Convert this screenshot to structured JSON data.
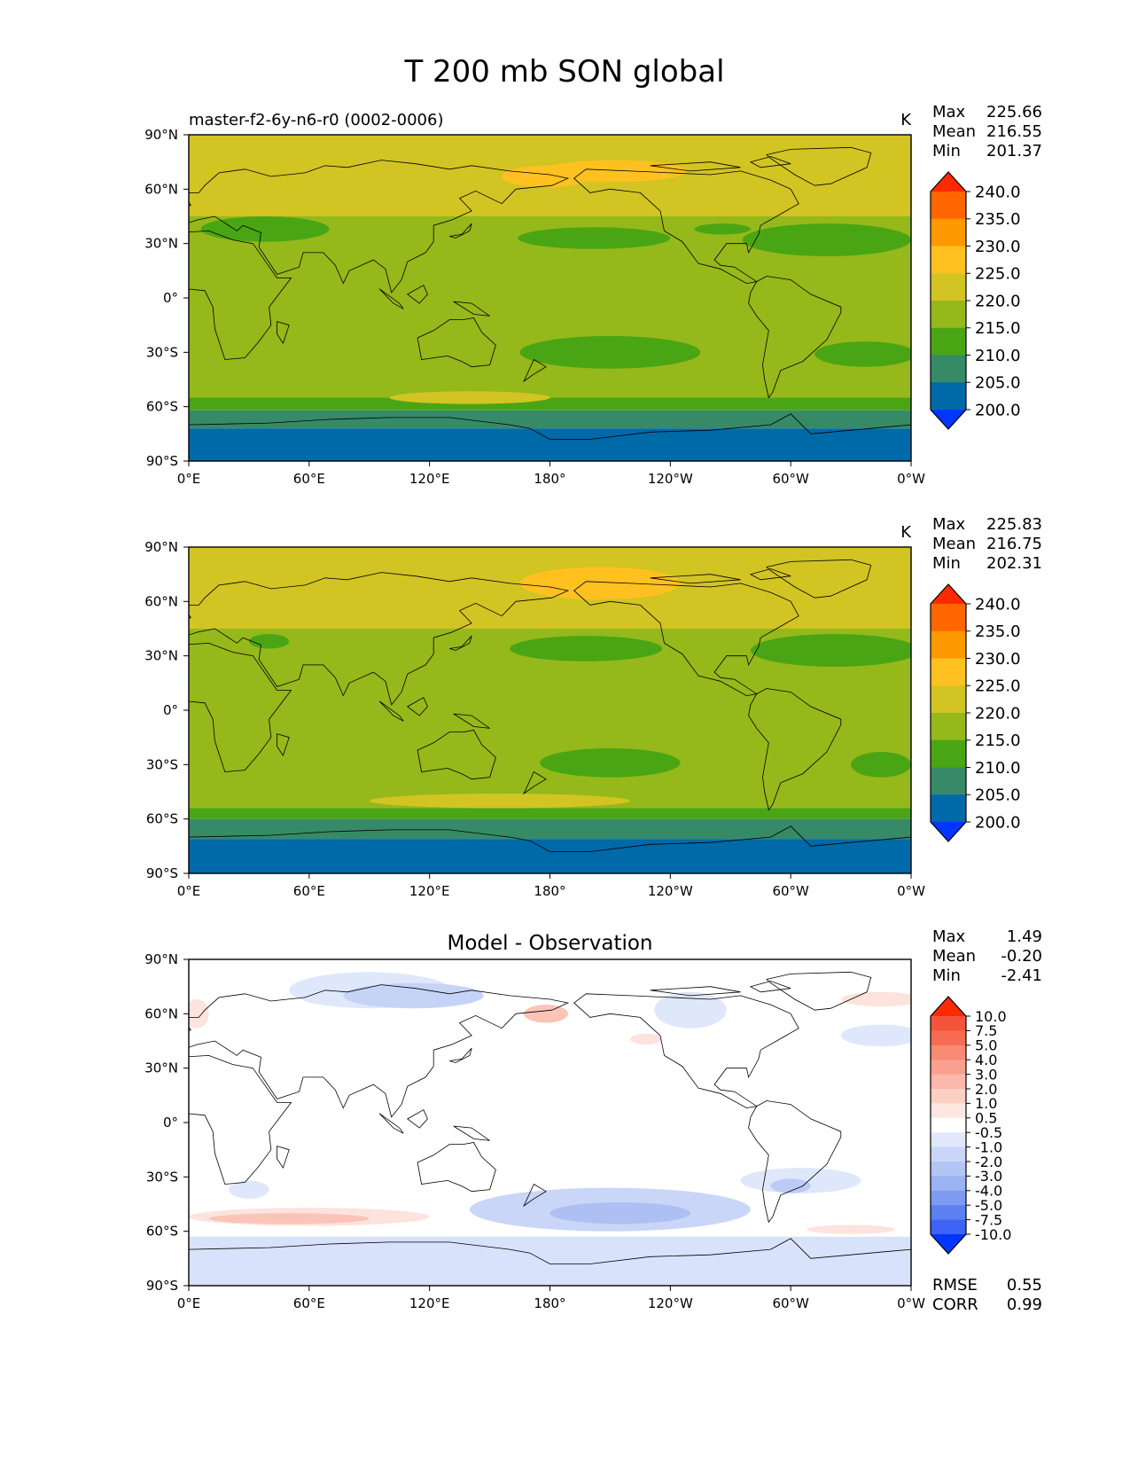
{
  "figure": {
    "title": "T 200 mb SON global",
    "colors": {
      "ocean_outline": "#000000",
      "land_line": "#000000"
    }
  },
  "panels": [
    {
      "id": "model",
      "subtitle_left": "master-f2-6y-n6-r0 (0002-0006)",
      "center_title": "",
      "units": "K",
      "stats": [
        {
          "label": "Max",
          "value": "225.66"
        },
        {
          "label": "Mean",
          "value": "216.55"
        },
        {
          "label": "Min",
          "value": "201.37"
        }
      ],
      "colorbar": {
        "levels": [
          "240.0",
          "235.0",
          "230.0",
          "225.0",
          "220.0",
          "215.0",
          "210.0",
          "205.0",
          "200.0"
        ],
        "colors": [
          "#ff2a00",
          "#ff6600",
          "#ff9900",
          "#ffc11f",
          "#d2c423",
          "#95b81a",
          "#4aa514",
          "#368a68",
          "#0069a8",
          "#0036ff"
        ]
      },
      "bands": [
        {
          "lat_top": 90,
          "lat_bottom": 45,
          "color": "#d2c423"
        },
        {
          "lat_top": 45,
          "lat_bottom": -55,
          "color": "#95b81a"
        },
        {
          "lat_top": -55,
          "lat_bottom": -62,
          "color": "#4aa514"
        },
        {
          "lat_top": -62,
          "lat_bottom": -72,
          "color": "#368a68"
        },
        {
          "lat_top": -72,
          "lat_bottom": -90,
          "color": "#0069a8"
        }
      ],
      "blobs": [
        {
          "lon": 178,
          "lat": 67,
          "dlon": 22,
          "dlat": 6,
          "color": "#ffc11f"
        },
        {
          "lon": 212,
          "lat": 70,
          "dlon": 36,
          "dlat": 6,
          "color": "#ffc11f"
        },
        {
          "lon": 38,
          "lat": 38,
          "dlon": 32,
          "dlat": 7,
          "color": "#4aa514"
        },
        {
          "lon": 202,
          "lat": 33,
          "dlon": 38,
          "dlat": 6,
          "color": "#4aa514"
        },
        {
          "lon": 318,
          "lat": 32,
          "dlon": 42,
          "dlat": 9,
          "color": "#4aa514"
        },
        {
          "lon": 266,
          "lat": 38,
          "dlon": 14,
          "dlat": 3,
          "color": "#4aa514"
        },
        {
          "lon": 210,
          "lat": -30,
          "dlon": 45,
          "dlat": 9,
          "color": "#4aa514"
        },
        {
          "lon": 337,
          "lat": -31,
          "dlon": 25,
          "dlat": 7,
          "color": "#4aa514"
        },
        {
          "lon": 140,
          "lat": -55,
          "dlon": 40,
          "dlat": 3.5,
          "color": "#d2c423"
        }
      ]
    },
    {
      "id": "obs",
      "subtitle_left": "",
      "center_title": "",
      "units": "K",
      "stats": [
        {
          "label": "Max",
          "value": "225.83"
        },
        {
          "label": "Mean",
          "value": "216.75"
        },
        {
          "label": "Min",
          "value": "202.31"
        }
      ],
      "colorbar": {
        "levels": [
          "240.0",
          "235.0",
          "230.0",
          "225.0",
          "220.0",
          "215.0",
          "210.0",
          "205.0",
          "200.0"
        ],
        "colors": [
          "#ff2a00",
          "#ff6600",
          "#ff9900",
          "#ffc11f",
          "#d2c423",
          "#95b81a",
          "#4aa514",
          "#368a68",
          "#0069a8",
          "#0036ff"
        ]
      },
      "bands": [
        {
          "lat_top": 90,
          "lat_bottom": 45,
          "color": "#d2c423"
        },
        {
          "lat_top": 45,
          "lat_bottom": -54,
          "color": "#95b81a"
        },
        {
          "lat_top": -54,
          "lat_bottom": -60,
          "color": "#4aa514"
        },
        {
          "lat_top": -60,
          "lat_bottom": -71,
          "color": "#368a68"
        },
        {
          "lat_top": -71,
          "lat_bottom": -90,
          "color": "#0069a8"
        }
      ],
      "blobs": [
        {
          "lon": 205,
          "lat": 70,
          "dlon": 40,
          "dlat": 9,
          "color": "#ffc11f"
        },
        {
          "lon": 40,
          "lat": 38,
          "dlon": 10,
          "dlat": 4,
          "color": "#4aa514"
        },
        {
          "lon": 198,
          "lat": 34,
          "dlon": 38,
          "dlat": 7,
          "color": "#4aa514"
        },
        {
          "lon": 322,
          "lat": 33,
          "dlon": 42,
          "dlat": 9,
          "color": "#4aa514"
        },
        {
          "lon": 210,
          "lat": -29,
          "dlon": 35,
          "dlat": 8,
          "color": "#4aa514"
        },
        {
          "lon": 345,
          "lat": -30,
          "dlon": 15,
          "dlat": 7,
          "color": "#4aa514"
        },
        {
          "lon": 155,
          "lat": -50,
          "dlon": 65,
          "dlat": 4,
          "color": "#d2c423"
        }
      ]
    },
    {
      "id": "diff",
      "subtitle_left": "",
      "center_title": "Model - Observation",
      "units": "",
      "stats": [
        {
          "label": "Max",
          "value": "1.49"
        },
        {
          "label": "Mean",
          "value": "-0.20"
        },
        {
          "label": "Min",
          "value": "-2.41"
        }
      ],
      "colorbar": {
        "levels": [
          "10.0",
          "7.5",
          "5.0",
          "4.0",
          "3.0",
          "2.0",
          "1.0",
          "0.5",
          "-0.5",
          "-1.0",
          "-2.0",
          "-3.0",
          "-4.0",
          "-5.0",
          "-7.5",
          "-10.0"
        ],
        "colors": [
          "#ff2a00",
          "#f4543b",
          "#f76b53",
          "#f98a74",
          "#fba090",
          "#fcb8aa",
          "#fdd0c6",
          "#fee7e1",
          "#ffffff",
          "#e1e8fb",
          "#c9d6f8",
          "#b3c5f5",
          "#9cb3f3",
          "#7f9bf1",
          "#5c7ff1",
          "#3f63f4",
          "#0036ff"
        ]
      },
      "bands": [
        {
          "lat_top": 90,
          "lat_bottom": -90,
          "color": "#ffffff"
        },
        {
          "lat_top": -63,
          "lat_bottom": -90,
          "color": "#d8e2fa"
        }
      ],
      "blobs": [
        {
          "lon": 90,
          "lat": 73,
          "dlon": 40,
          "dlat": 10,
          "color": "#dfe7fb"
        },
        {
          "lon": 112,
          "lat": 70,
          "dlon": 35,
          "dlat": 7,
          "color": "#c5d3f7"
        },
        {
          "lon": 250,
          "lat": 62,
          "dlon": 18,
          "dlat": 10,
          "color": "#dfe7fb"
        },
        {
          "lon": 345,
          "lat": 48,
          "dlon": 20,
          "dlat": 6,
          "color": "#dfe7fb"
        },
        {
          "lon": 210,
          "lat": -48,
          "dlon": 70,
          "dlat": 12,
          "color": "#c9d6f8"
        },
        {
          "lon": 215,
          "lat": -50,
          "dlon": 35,
          "dlat": 6,
          "color": "#aebff4"
        },
        {
          "lon": 305,
          "lat": -32,
          "dlon": 30,
          "dlat": 7,
          "color": "#dfe7fb"
        },
        {
          "lon": 300,
          "lat": -35,
          "dlon": 10,
          "dlat": 4,
          "color": "#bccbf6"
        },
        {
          "lon": 60,
          "lat": -52,
          "dlon": 60,
          "dlat": 5,
          "color": "#fde3dd"
        },
        {
          "lon": 50,
          "lat": -53,
          "dlon": 40,
          "dlat": 3,
          "color": "#fbc4b8"
        },
        {
          "lon": 178,
          "lat": 60,
          "dlon": 11,
          "dlat": 5,
          "color": "#fbc4b8"
        },
        {
          "lon": 228,
          "lat": 46,
          "dlon": 8,
          "dlat": 3,
          "color": "#fde3dd"
        },
        {
          "lon": 4,
          "lat": 60,
          "dlon": 6,
          "dlat": 8,
          "color": "#fde3dd"
        },
        {
          "lon": 345,
          "lat": 68,
          "dlon": 20,
          "dlat": 4,
          "color": "#fde3dd"
        },
        {
          "lon": 330,
          "lat": -59,
          "dlon": 22,
          "dlat": 2.5,
          "color": "#fde3dd"
        },
        {
          "lon": 30,
          "lat": -37,
          "dlon": 10,
          "dlat": 5,
          "color": "#dfe7fb"
        }
      ],
      "metrics": [
        {
          "label": "RMSE",
          "value": "0.55"
        },
        {
          "label": "CORR",
          "value": "0.99"
        }
      ]
    }
  ],
  "axis": {
    "lat_ticks": [
      "90°N",
      "60°N",
      "30°N",
      "0°",
      "30°S",
      "60°S",
      "90°S"
    ],
    "lon_ticks": [
      "0°E",
      "60°E",
      "120°E",
      "180°",
      "120°W",
      "60°W",
      "0°W"
    ]
  }
}
